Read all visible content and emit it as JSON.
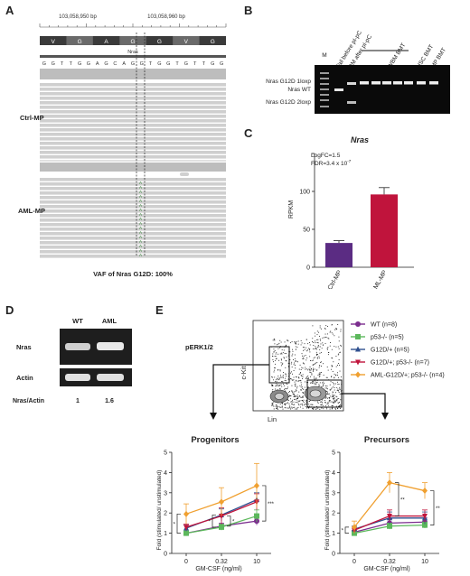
{
  "panels": {
    "A": {
      "letter": "A",
      "coord_left": "103,058,950 bp",
      "coord_right": "103,058,960 bp",
      "aa_track": [
        "V",
        "G",
        "A",
        "G",
        "G",
        "V",
        "G"
      ],
      "gene_label": "Nras",
      "seq": [
        "G",
        "G",
        "T",
        "T",
        "G",
        "G",
        "A",
        "G",
        "C",
        "A",
        "G",
        "G",
        "T",
        "G",
        "G",
        "T",
        "G",
        "T",
        "T",
        "G",
        "G"
      ],
      "ctrl_label": "Ctrl-MP",
      "aml_label": "AML-MP",
      "variant_base": "A",
      "caption": "VAF of Nras G12D: 100%"
    },
    "B": {
      "letter": "B",
      "lane_labels": [
        "M",
        "Tail before pI-pC",
        "BM after pI-pC",
        "WBM BMT",
        "HSC BMT",
        "MP BMT"
      ],
      "band_labels": [
        "Nras G12D 1loxp",
        "Nras WT",
        "Nras G12D 2loxp"
      ]
    },
    "C": {
      "letter": "C",
      "title": "Nras",
      "stat1": "LogFC=1.5",
      "stat2": "FDR=3.4 x 10",
      "stat2_exp": "-7",
      "ylabel": "RPKM",
      "yticks": [
        "0",
        "50",
        "100"
      ],
      "colors": {
        "ctrl": "#5b2c83",
        "aml": "#c0143c"
      }
    },
    "D": {
      "letter": "D",
      "col1": "WT",
      "col2": "AML",
      "row1": "Nras",
      "row2": "Actin",
      "ratio_label": "Nras/Actin",
      "ratio_wt": "1",
      "ratio_aml": "1.6"
    },
    "E": {
      "letter": "E",
      "flow_title": "pERK1/2",
      "flow_y": "c-Kit",
      "flow_x": "Lin",
      "legend": [
        {
          "label": "WT",
          "n": "(n=8)",
          "color": "#7b2d8e",
          "marker": "circle"
        },
        {
          "label": "p53-/-",
          "n": "(n=5)",
          "color": "#5cb85c",
          "marker": "square"
        },
        {
          "label": "G12D/+",
          "n": "(n=5)",
          "color": "#2f4f8f",
          "marker": "triangle"
        },
        {
          "label": "G12D/+; p53-/-",
          "n": "(n=7)",
          "color": "#c0143c",
          "marker": "tridown"
        },
        {
          "label": "AML-G12D/+; p53-/-",
          "n": "(n=4)",
          "color": "#f0a030",
          "marker": "diamond"
        }
      ],
      "plot_ylabel": "Fold (stimulated/ unstimulated)",
      "plot_xlabel": "GM-CSF (ng/ml)"
    }
  },
  "chart_data": [
    {
      "type": "bar",
      "title": "Nras",
      "categories": [
        "Ctrl-MP",
        "AML-MP"
      ],
      "values": [
        32,
        96
      ],
      "errors": [
        3,
        9
      ],
      "ylabel": "RPKM",
      "ylim": [
        0,
        150
      ]
    },
    {
      "type": "line",
      "title": "Progenitors",
      "xlabel": "GM-CSF (ng/ml)",
      "ylabel": "Fold (stimulated/ unstimulated)",
      "x": [
        "0",
        "0.32",
        "10"
      ],
      "ylim": [
        0,
        5
      ],
      "series": [
        {
          "name": "WT",
          "values": [
            1.0,
            1.35,
            1.6
          ],
          "errors": [
            0.1,
            0.15,
            0.2
          ]
        },
        {
          "name": "p53-/-",
          "values": [
            1.0,
            1.3,
            1.85
          ],
          "errors": [
            0.1,
            0.15,
            0.3
          ]
        },
        {
          "name": "G12D/+",
          "values": [
            1.25,
            1.9,
            2.65
          ],
          "errors": [
            0.15,
            0.3,
            0.35
          ]
        },
        {
          "name": "G12D/+; p53-/-",
          "values": [
            1.3,
            1.85,
            2.55
          ],
          "errors": [
            0.15,
            0.4,
            0.4
          ]
        },
        {
          "name": "AML-G12D/+; p53-/-",
          "values": [
            1.95,
            2.55,
            3.35
          ],
          "errors": [
            0.5,
            0.7,
            1.1
          ]
        }
      ]
    },
    {
      "type": "line",
      "title": "Precursors",
      "xlabel": "GM-CSF (ng/ml)",
      "ylabel": "Fold (stimulated/ unstimulated)",
      "x": [
        "0",
        "0.32",
        "10"
      ],
      "ylim": [
        0,
        5
      ],
      "series": [
        {
          "name": "WT",
          "values": [
            1.05,
            1.5,
            1.55
          ],
          "errors": [
            0.1,
            0.2,
            0.2
          ]
        },
        {
          "name": "p53-/-",
          "values": [
            1.0,
            1.35,
            1.4
          ],
          "errors": [
            0.1,
            0.15,
            0.15
          ]
        },
        {
          "name": "G12D/+",
          "values": [
            1.2,
            1.75,
            1.75
          ],
          "errors": [
            0.15,
            0.3,
            0.3
          ]
        },
        {
          "name": "G12D/+; p53-/-",
          "values": [
            1.15,
            1.85,
            1.85
          ],
          "errors": [
            0.15,
            0.3,
            0.3
          ]
        },
        {
          "name": "AML-G12D/+; p53-/-",
          "values": [
            1.3,
            3.5,
            3.1
          ],
          "errors": [
            0.3,
            0.5,
            0.4
          ]
        }
      ]
    }
  ]
}
